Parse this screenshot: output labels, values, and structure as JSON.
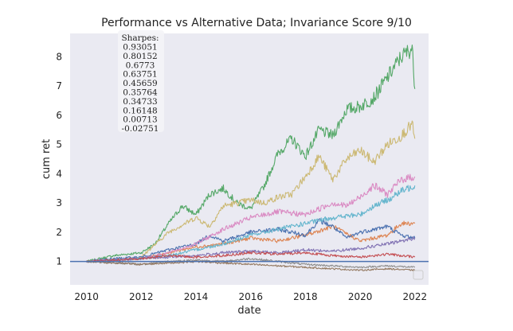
{
  "chart_data": {
    "type": "line",
    "title": "Performance vs Alternative Data; Invariance Score 9/10",
    "xlabel": "date",
    "ylabel": "cum ret",
    "xlim": [
      2009.4,
      2022.5
    ],
    "ylim": [
      0.2,
      8.8
    ],
    "x_ticks": [
      2010,
      2012,
      2014,
      2016,
      2018,
      2020,
      2022
    ],
    "y_ticks": [
      1,
      2,
      3,
      4,
      5,
      6,
      7,
      8
    ],
    "grid": false,
    "background": "#eaeaf2",
    "baseline": {
      "y": 1,
      "color": "#4c72b0"
    },
    "sharpes_box": {
      "heading": "Sharpes:",
      "values": [
        "0.93051",
        "0.80152",
        "0.6773",
        "0.63751",
        "0.45659",
        "0.35764",
        "0.34733",
        "0.16148",
        "0.00713",
        "-0.02751"
      ]
    },
    "series": [
      {
        "color": "#55a868",
        "x": [
          2010.0,
          2011.0,
          2012.0,
          2012.5,
          2013.0,
          2013.5,
          2014.0,
          2014.5,
          2015.0,
          2015.5,
          2016.0,
          2016.5,
          2017.0,
          2017.5,
          2018.0,
          2018.5,
          2019.0,
          2019.5,
          2020.0,
          2020.5,
          2021.0,
          2021.5,
          2021.9,
          2022.0
        ],
        "values": [
          1.0,
          1.2,
          1.3,
          1.6,
          2.3,
          2.9,
          2.6,
          3.3,
          3.5,
          3.0,
          2.8,
          3.6,
          4.7,
          5.2,
          4.6,
          5.5,
          5.3,
          6.2,
          6.3,
          6.6,
          7.3,
          8.0,
          8.3,
          6.9
        ]
      },
      {
        "color": "#ccb974",
        "x": [
          2010.0,
          2011.0,
          2012.0,
          2013.0,
          2014.0,
          2014.5,
          2015.0,
          2016.0,
          2016.5,
          2017.0,
          2017.5,
          2018.0,
          2018.5,
          2019.0,
          2019.5,
          2020.0,
          2020.5,
          2021.0,
          2021.5,
          2021.9,
          2022.0
        ],
        "values": [
          1.0,
          1.05,
          1.15,
          2.0,
          2.5,
          2.2,
          2.9,
          3.1,
          3.0,
          3.2,
          3.3,
          3.9,
          4.6,
          3.8,
          4.5,
          4.8,
          4.4,
          5.0,
          5.3,
          5.7,
          5.2
        ]
      },
      {
        "color": "#dd8452",
        "x": [
          2010.0,
          2011.0,
          2012.0,
          2013.0,
          2014.0,
          2015.0,
          2016.0,
          2017.0,
          2018.0,
          2019.0,
          2020.0,
          2020.5,
          2021.0,
          2021.5,
          2022.0
        ],
        "values": [
          1.0,
          1.05,
          1.1,
          1.3,
          1.5,
          1.6,
          1.8,
          1.7,
          1.9,
          2.2,
          1.7,
          1.8,
          1.9,
          2.3,
          2.3
        ]
      },
      {
        "color": "#4c72b0",
        "x": [
          2010.0,
          2011.0,
          2012.0,
          2013.0,
          2014.0,
          2014.5,
          2015.0,
          2016.0,
          2017.0,
          2018.0,
          2018.5,
          2019.0,
          2019.5,
          2020.0,
          2021.0,
          2021.5,
          2022.0
        ],
        "values": [
          1.0,
          1.1,
          1.15,
          1.4,
          1.6,
          1.9,
          1.7,
          2.0,
          2.1,
          1.9,
          2.4,
          2.2,
          1.8,
          2.0,
          2.2,
          1.9,
          1.8
        ]
      },
      {
        "color": "#da8bc3",
        "x": [
          2010.0,
          2011.0,
          2012.0,
          2013.0,
          2014.0,
          2015.0,
          2016.0,
          2017.0,
          2018.0,
          2019.0,
          2019.5,
          2020.0,
          2020.5,
          2021.0,
          2021.5,
          2022.0
        ],
        "values": [
          1.0,
          1.05,
          1.1,
          1.3,
          1.6,
          2.1,
          2.5,
          2.7,
          2.6,
          3.0,
          2.9,
          3.2,
          3.6,
          3.3,
          3.8,
          3.9
        ]
      },
      {
        "color": "#64b5cd",
        "x": [
          2010.0,
          2011.0,
          2012.0,
          2013.0,
          2014.0,
          2015.0,
          2016.0,
          2017.0,
          2018.0,
          2019.0,
          2020.0,
          2020.5,
          2021.0,
          2021.5,
          2022.0
        ],
        "values": [
          1.0,
          1.05,
          1.1,
          1.2,
          1.4,
          1.6,
          1.9,
          2.1,
          2.3,
          2.5,
          2.6,
          2.9,
          3.1,
          3.4,
          3.6
        ]
      },
      {
        "color": "#8172b3",
        "x": [
          2010.0,
          2011.0,
          2012.0,
          2013.0,
          2014.0,
          2015.0,
          2016.0,
          2017.0,
          2018.0,
          2019.0,
          2020.0,
          2021.0,
          2021.5,
          2022.0
        ],
        "values": [
          1.0,
          1.05,
          1.1,
          1.15,
          1.2,
          1.3,
          1.35,
          1.3,
          1.4,
          1.35,
          1.45,
          1.6,
          1.7,
          1.8
        ]
      },
      {
        "color": "#c44e52",
        "x": [
          2010.0,
          2011.0,
          2012.0,
          2013.0,
          2014.0,
          2015.0,
          2016.0,
          2017.0,
          2018.0,
          2019.0,
          2020.0,
          2021.0,
          2022.0
        ],
        "values": [
          1.0,
          1.05,
          1.1,
          1.2,
          1.15,
          1.2,
          1.3,
          1.25,
          1.3,
          1.2,
          1.15,
          1.25,
          1.15
        ]
      },
      {
        "color": "#8c8c8c",
        "x": [
          2010.0,
          2011.0,
          2012.0,
          2013.0,
          2014.0,
          2015.0,
          2016.0,
          2017.0,
          2018.0,
          2019.0,
          2020.0,
          2021.0,
          2022.0
        ],
        "values": [
          1.0,
          0.95,
          0.9,
          1.0,
          1.05,
          1.0,
          1.1,
          1.0,
          0.9,
          0.85,
          0.8,
          0.85,
          0.8
        ]
      },
      {
        "color": "#937860",
        "x": [
          2010.0,
          2011.0,
          2012.0,
          2013.0,
          2014.0,
          2015.0,
          2016.0,
          2017.0,
          2018.0,
          2019.0,
          2020.0,
          2021.0,
          2022.0
        ],
        "values": [
          1.0,
          0.95,
          0.9,
          0.95,
          1.0,
          0.95,
          0.9,
          0.85,
          0.8,
          0.75,
          0.7,
          0.75,
          0.7
        ]
      }
    ]
  }
}
